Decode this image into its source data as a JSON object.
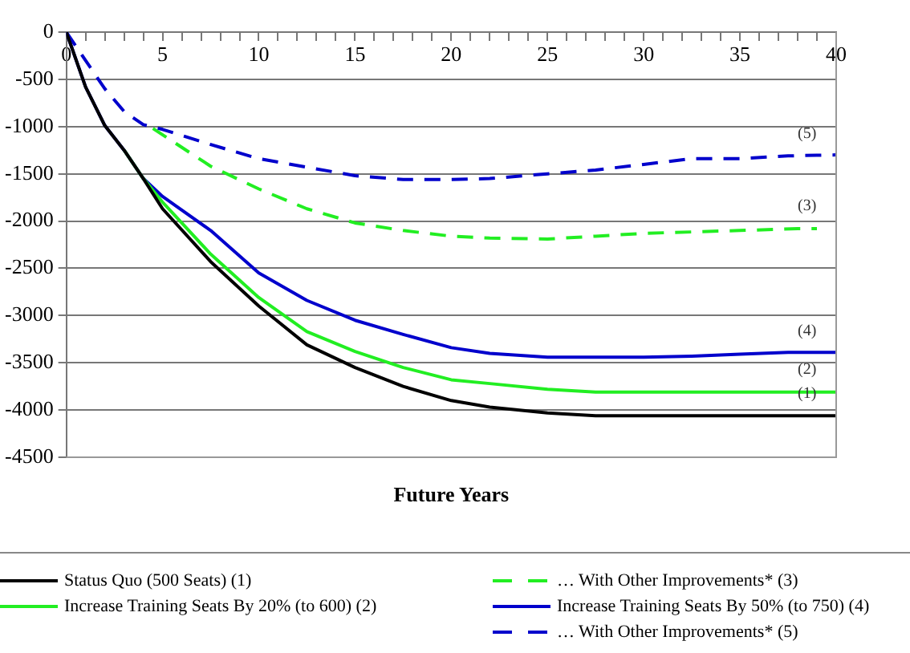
{
  "chart_data": {
    "type": "line",
    "xlabel": "Future Years",
    "x": [
      0,
      1,
      2,
      3,
      4,
      5,
      7.5,
      10,
      12.5,
      15,
      17.5,
      20,
      22,
      25,
      27.5,
      30,
      32.5,
      35,
      37.5,
      40
    ],
    "xlim": [
      0,
      40
    ],
    "xticks": [
      0,
      {
        "value": 1,
        "label": null
      },
      {
        "value": 2,
        "label": null
      },
      {
        "value": 3,
        "label": null
      },
      {
        "value": 4,
        "label": null
      },
      5,
      {
        "value": 6,
        "label": null
      },
      {
        "value": 7,
        "label": null
      },
      {
        "value": 8,
        "label": null
      },
      {
        "value": 9,
        "label": null
      },
      10,
      {
        "value": 11,
        "label": null
      },
      {
        "value": 12,
        "label": null
      },
      {
        "value": 13,
        "label": null
      },
      {
        "value": 14,
        "label": null
      },
      15,
      {
        "value": 16,
        "label": null
      },
      {
        "value": 17,
        "label": null
      },
      {
        "value": 18,
        "label": null
      },
      {
        "value": 19,
        "label": null
      },
      20,
      {
        "value": 21,
        "label": null
      },
      {
        "value": 22,
        "label": null
      },
      {
        "value": 23,
        "label": null
      },
      {
        "value": 24,
        "label": null
      },
      25,
      {
        "value": 26,
        "label": null
      },
      {
        "value": 27,
        "label": null
      },
      {
        "value": 28,
        "label": null
      },
      {
        "value": 29,
        "label": null
      },
      30,
      {
        "value": 31,
        "label": null
      },
      {
        "value": 32,
        "label": null
      },
      {
        "value": 33,
        "label": null
      },
      {
        "value": 34,
        "label": null
      },
      35,
      {
        "value": 36,
        "label": null
      },
      {
        "value": 37,
        "label": null
      },
      {
        "value": 38,
        "label": null
      },
      {
        "value": 39,
        "label": null
      },
      40
    ],
    "ylim": [
      -4500,
      0
    ],
    "yticks": [
      -4500,
      -4000,
      -3500,
      -3000,
      -2500,
      -2000,
      -1500,
      -1000,
      -500,
      0
    ],
    "grid": "y",
    "legend": "bottom",
    "series": [
      {
        "name": "Status Quo (500 Seats) (1)",
        "color": "#000000",
        "line_style": "solid",
        "values": [
          0,
          -580,
          -990,
          -1250,
          -1550,
          -1870,
          -2430,
          -2900,
          -3310,
          -3550,
          -3750,
          -3900,
          -3970,
          -4030,
          -4060,
          -4060,
          -4060,
          -4060,
          -4060,
          -4060
        ]
      },
      {
        "name": "Increase Training Seats By 20% (to 600) (2)",
        "color": "#22ee22",
        "line_style": "solid",
        "values": [
          null,
          null,
          null,
          -1250,
          -1550,
          -1800,
          -2350,
          -2810,
          -3170,
          -3380,
          -3550,
          -3680,
          -3720,
          -3780,
          -3810,
          -3810,
          -3810,
          -3810,
          -3810,
          -3810
        ]
      },
      {
        "name": "… With Other Improvements* (3)",
        "color": "#22ee22",
        "line_style": "dashed",
        "x": [
          4.5,
          7.5,
          10,
          12.5,
          15,
          17.5,
          20,
          22,
          25,
          27.5,
          30,
          35,
          38,
          39
        ],
        "values": [
          -1020,
          -1420,
          -1660,
          -1870,
          -2020,
          -2100,
          -2160,
          -2180,
          -2190,
          -2160,
          -2130,
          -2100,
          -2080,
          -2080
        ]
      },
      {
        "name": "Increase Training Seats By 50% (to 750) (4)",
        "color": "#0000cc",
        "line_style": "solid",
        "values": [
          0,
          -580,
          -990,
          -1250,
          -1550,
          -1740,
          -2100,
          -2550,
          -2840,
          -3050,
          -3200,
          -3340,
          -3400,
          -3440,
          -3440,
          -3440,
          -3430,
          -3410,
          -3390,
          -3390
        ]
      },
      {
        "name": "… With Other Improvements* (5)",
        "color": "#0000cc",
        "line_style": "dashed",
        "values": [
          0,
          -300,
          -600,
          -840,
          -980,
          -1030,
          -1190,
          -1340,
          -1430,
          -1520,
          -1560,
          -1560,
          -1550,
          -1500,
          -1460,
          -1400,
          -1340,
          -1340,
          -1310,
          -1300
        ]
      }
    ],
    "annotations": [
      {
        "text": "(5)",
        "y": -1300
      },
      {
        "text": "(3)",
        "y": -2080
      },
      {
        "text": "(4)",
        "y": -3390
      },
      {
        "text": "(2)",
        "y": -3810
      },
      {
        "text": "(1)",
        "y": -4060
      }
    ]
  }
}
